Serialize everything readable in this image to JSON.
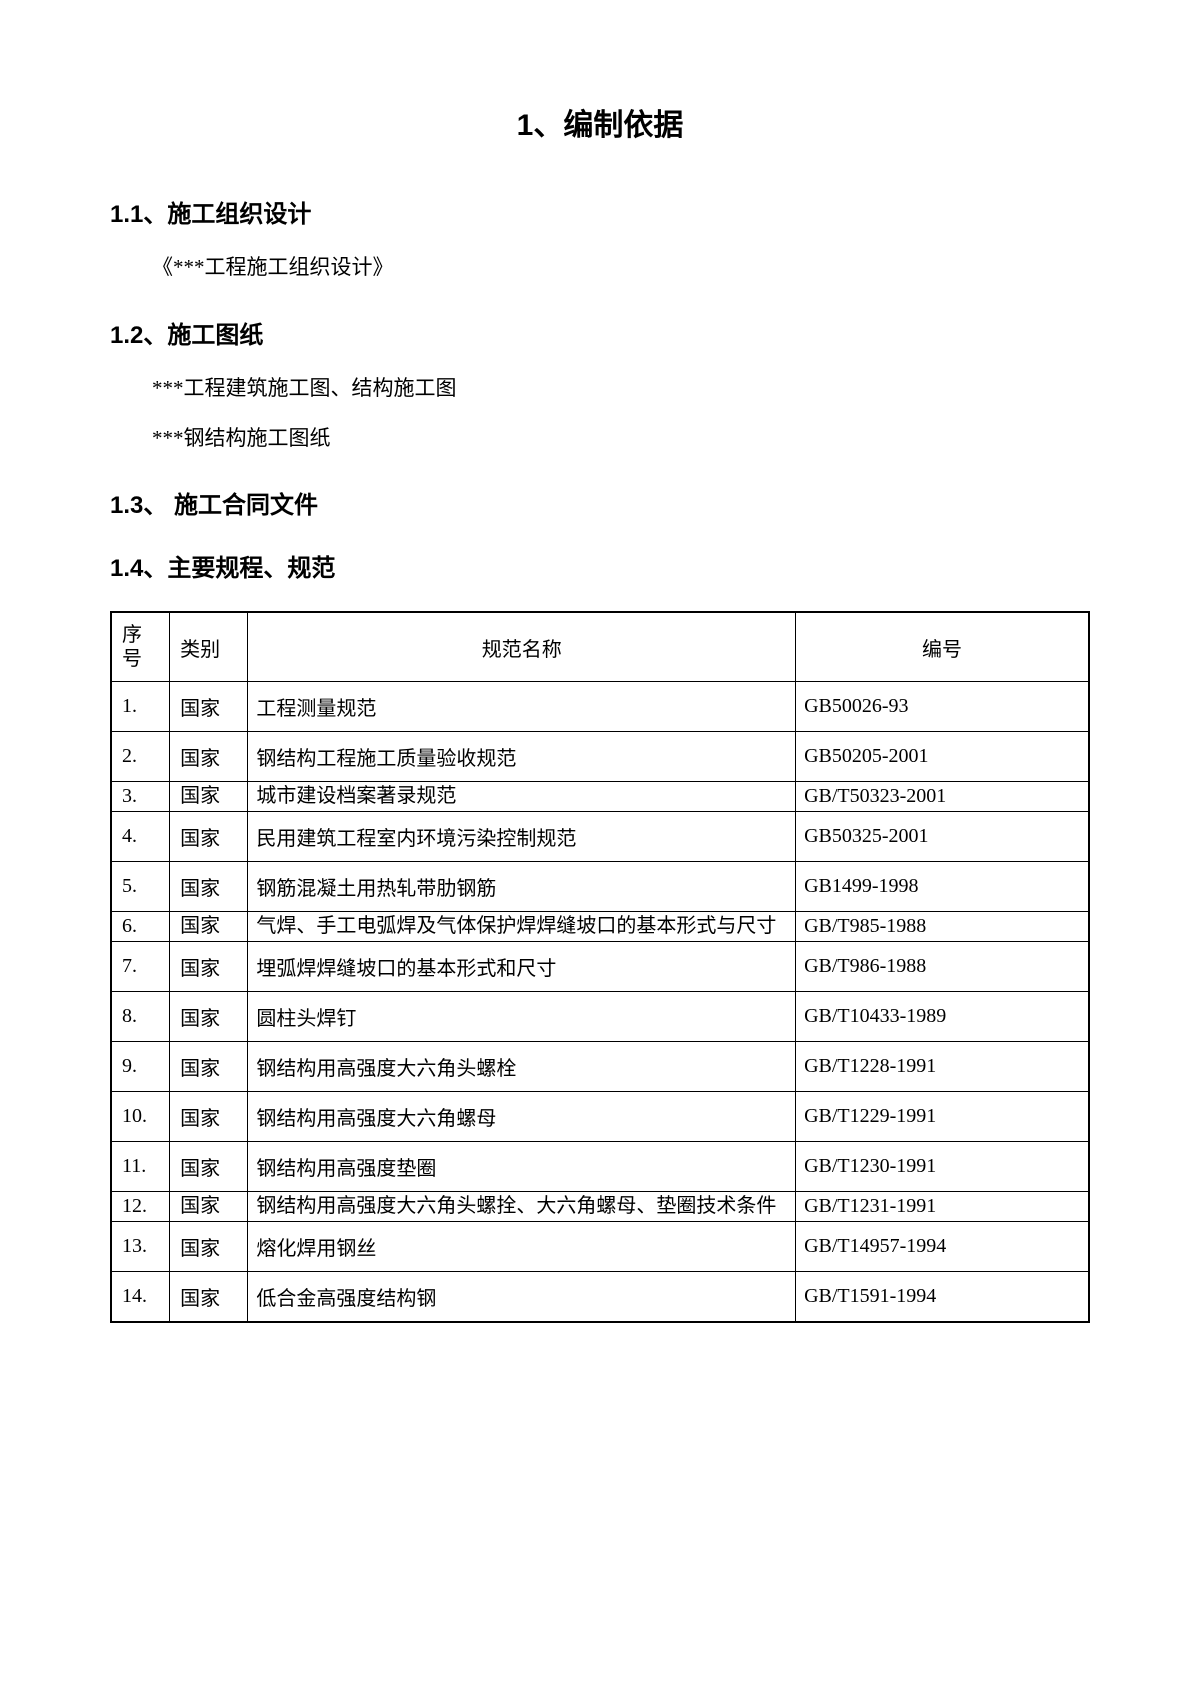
{
  "chapter": {
    "title": "1、编制依据"
  },
  "sections": {
    "s1": {
      "title": "1.1、施工组织设计",
      "lines": [
        "《***工程施工组织设计》"
      ]
    },
    "s2": {
      "title": "1.2、施工图纸",
      "lines": [
        "***工程建筑施工图、结构施工图",
        "***钢结构施工图纸"
      ]
    },
    "s3": {
      "title": "1.3、 施工合同文件"
    },
    "s4": {
      "title": "1.4、主要规程、规范"
    }
  },
  "table": {
    "headers": {
      "seq_l1": "序",
      "seq_l2": "号",
      "category": "类别",
      "name": "规范名称",
      "code": "编号"
    },
    "rows": [
      {
        "seq": "1.",
        "category": "国家",
        "name": "工程测量规范",
        "code": "GB50026-93"
      },
      {
        "seq": "2.",
        "category": "国家",
        "name": "钢结构工程施工质量验收规范",
        "code": "GB50205-2001"
      },
      {
        "seq": "3.",
        "category": "国家",
        "name": "城市建设档案著录规范",
        "code": "GB/T50323-2001",
        "tight": true
      },
      {
        "seq": "4.",
        "category": "国家",
        "name": "民用建筑工程室内环境污染控制规范",
        "code": "GB50325-2001",
        "cat_top": true
      },
      {
        "seq": "5.",
        "category": "国家",
        "name": "钢筋混凝土用热轧带肋钢筋",
        "code": "GB1499-1998"
      },
      {
        "seq": "6.",
        "category": "国家",
        "name": "气焊、手工电弧焊及气体保护焊焊缝坡口的基本形式与尺寸",
        "code": "GB/T985-1988",
        "tight": true
      },
      {
        "seq": "7.",
        "category": "国家",
        "name": "埋弧焊焊缝坡口的基本形式和尺寸",
        "code": "GB/T986-1988"
      },
      {
        "seq": "8.",
        "category": "国家",
        "name": "圆柱头焊钉",
        "code": "GB/T10433-1989"
      },
      {
        "seq": "9.",
        "category": "国家",
        "name": "钢结构用高强度大六角头螺栓",
        "code": "GB/T1228-1991"
      },
      {
        "seq": "10.",
        "category": "国家",
        "name": "钢结构用高强度大六角螺母",
        "code": "GB/T1229-1991"
      },
      {
        "seq": "11.",
        "category": "国家",
        "name": "钢结构用高强度垫圈",
        "code": "GB/T1230-1991"
      },
      {
        "seq": "12.",
        "category": "国家",
        "name": "钢结构用高强度大六角头螺拴、大六角螺母、垫圈技术条件",
        "code": "GB/T1231-1991",
        "tight": true
      },
      {
        "seq": "13.",
        "category": "国家",
        "name": "熔化焊用钢丝",
        "code": "GB/T14957-1994"
      },
      {
        "seq": "14.",
        "category": "国家",
        "name": "低合金高强度结构钢",
        "code": "GB/T1591-1994"
      }
    ]
  }
}
